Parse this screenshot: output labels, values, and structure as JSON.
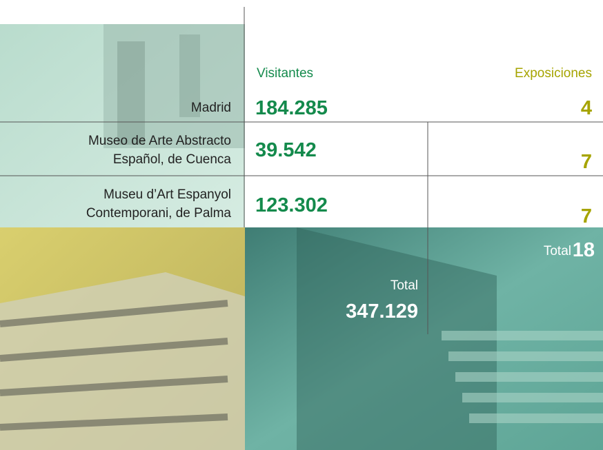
{
  "header": {
    "visitors": "Visitantes",
    "exhibitions": "Exposiciones"
  },
  "rows": [
    {
      "label": [
        "Madrid"
      ],
      "visitors": "184.285",
      "exhibitions": "4"
    },
    {
      "label": [
        "Museo de Arte Abstracto",
        "Español, de Cuenca"
      ],
      "visitors": "39.542",
      "exhibitions": "7"
    },
    {
      "label": [
        "Museu d’Art Espanyol",
        "Contemporani, de Palma"
      ],
      "visitors": "123.302",
      "exhibitions": "7"
    }
  ],
  "totals": {
    "visitors_label": "Total",
    "visitors": "347.129",
    "exhibitions_label": "Total",
    "exhibitions": "18"
  }
}
